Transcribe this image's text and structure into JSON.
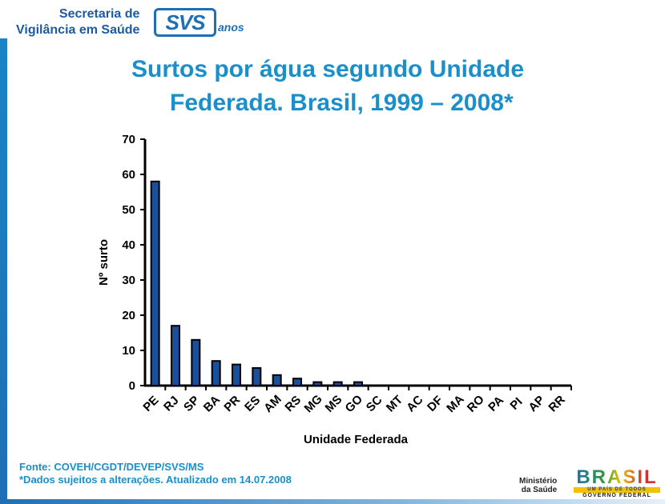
{
  "header": {
    "org_line1": "Secretaria de",
    "org_line2": "Vigilância em Saúde",
    "logo_text": "SVS",
    "logo_suffix": "anos"
  },
  "title": {
    "line1": "Surtos por água segundo Unidade",
    "line2": "Federada. Brasil, 1999 – 2008*"
  },
  "chart_data": {
    "type": "bar",
    "categories": [
      "PE",
      "RJ",
      "SP",
      "BA",
      "PR",
      "ES",
      "AM",
      "RS",
      "MG",
      "MS",
      "GO",
      "SC",
      "MT",
      "AC",
      "DF",
      "MA",
      "RO",
      "PA",
      "PI",
      "AP",
      "RR"
    ],
    "values": [
      58,
      17,
      13,
      7,
      6,
      5,
      3,
      2,
      1,
      1,
      1,
      0,
      0,
      0,
      0,
      0,
      0,
      0,
      0,
      0,
      0
    ],
    "title": "",
    "xlabel": "Unidade Federada",
    "ylabel": "Nº surto",
    "ylim": [
      0,
      70
    ],
    "yticks": [
      0,
      10,
      20,
      30,
      40,
      50,
      60,
      70
    ],
    "bar_color": "#1a4f9c",
    "grid": false
  },
  "footer": {
    "source": "Fonte: COVEH/CGDT/DEVEP/SVS/MS",
    "note": "*Dados sujeitos a alterações. Atualizado em 14.07.2008"
  },
  "logos": {
    "ministerio_line1": "Ministério",
    "ministerio_line2": "da Saúde",
    "brasil_word": "BRASIL",
    "brasil_tagline": "UM PAÍS DE TODOS",
    "governo": "GOVERNO FEDERAL"
  }
}
